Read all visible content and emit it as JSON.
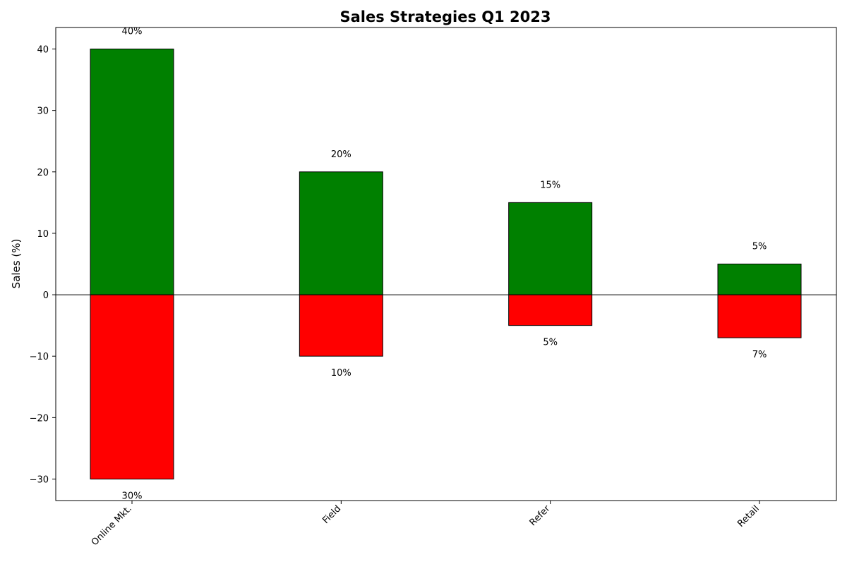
{
  "chart_data": {
    "type": "bar",
    "title": "Sales Strategies Q1 2023",
    "xlabel": "",
    "ylabel": "Sales (%)",
    "categories": [
      "Online Mkt.",
      "Field",
      "Refer",
      "Retail"
    ],
    "series": [
      {
        "values": [
          40,
          20,
          15,
          5
        ],
        "labels": [
          "40%",
          "20%",
          "15%",
          "5%"
        ],
        "color": "#008000"
      },
      {
        "values": [
          -30,
          -10,
          -5,
          -7
        ],
        "labels": [
          "30%",
          "10%",
          "5%",
          "7%"
        ],
        "color": "#ff0000"
      }
    ],
    "ylim": [
      -33.5,
      43.5
    ],
    "yticks": [
      -30,
      -20,
      -10,
      0,
      10,
      20,
      30,
      40
    ],
    "ytick_labels": [
      "−30",
      "−20",
      "−10",
      "0",
      "10",
      "20",
      "30",
      "40"
    ],
    "zero_line": true,
    "grid": false,
    "bar_edge_color": "#000000"
  }
}
